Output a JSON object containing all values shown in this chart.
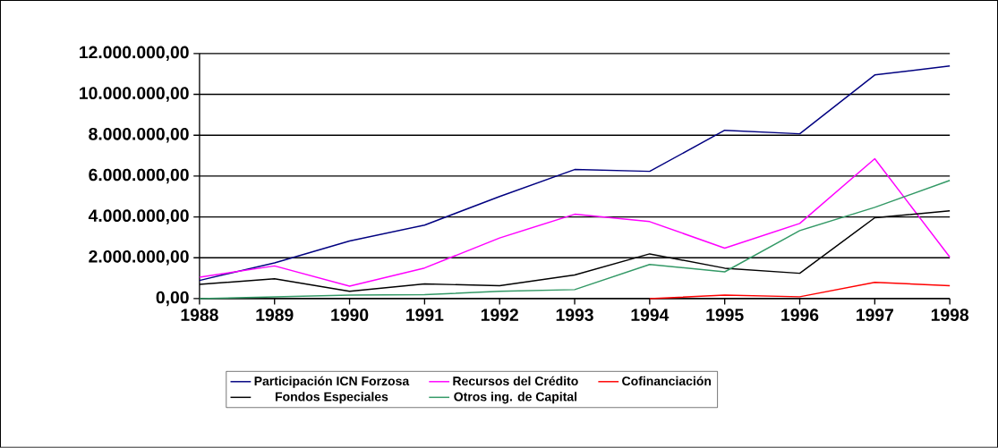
{
  "chart_data": {
    "type": "line",
    "categories": [
      "1988",
      "1989",
      "1990",
      "1991",
      "1992",
      "1993",
      "1994",
      "1995",
      "1996",
      "1997",
      "1998"
    ],
    "series": [
      {
        "name": "Participación ICN Forzosa",
        "color": "#000080",
        "values": [
          890000,
          1750000,
          2820000,
          3600000,
          5000000,
          6320000,
          6230000,
          8240000,
          8070000,
          10950000,
          11390000
        ]
      },
      {
        "name": "Recursos del Crédito",
        "color": "#ff00ff",
        "values": [
          1050000,
          1600000,
          610000,
          1500000,
          2970000,
          4130000,
          3770000,
          2470000,
          3680000,
          6850000,
          2030000
        ]
      },
      {
        "name": "Cofinanciación",
        "color": "#ff0000",
        "values": [
          null,
          null,
          null,
          null,
          null,
          null,
          0,
          170000,
          90000,
          800000,
          630000
        ]
      },
      {
        "name": "Fondos Especiales",
        "color": "#000000",
        "values": [
          700000,
          970000,
          360000,
          720000,
          630000,
          1160000,
          2190000,
          1490000,
          1240000,
          3960000,
          4300000
        ]
      },
      {
        "name": "Otros ing. de Capital",
        "color": "#339966",
        "values": [
          0,
          80000,
          170000,
          190000,
          360000,
          440000,
          1670000,
          1310000,
          3330000,
          4470000,
          5790000
        ]
      }
    ],
    "ylim": [
      0,
      12000000
    ],
    "yticks": [
      {
        "value": 0,
        "label": "0,00"
      },
      {
        "value": 2000000,
        "label": "2.000.000,00"
      },
      {
        "value": 4000000,
        "label": "4.000.000,00"
      },
      {
        "value": 6000000,
        "label": "6.000.000,00"
      },
      {
        "value": 8000000,
        "label": "8.000.000,00"
      },
      {
        "value": 10000000,
        "label": "10.000.000,00"
      },
      {
        "value": 12000000,
        "label": "12.000.000,00"
      }
    ],
    "grid": "y",
    "legend": "bottom"
  }
}
